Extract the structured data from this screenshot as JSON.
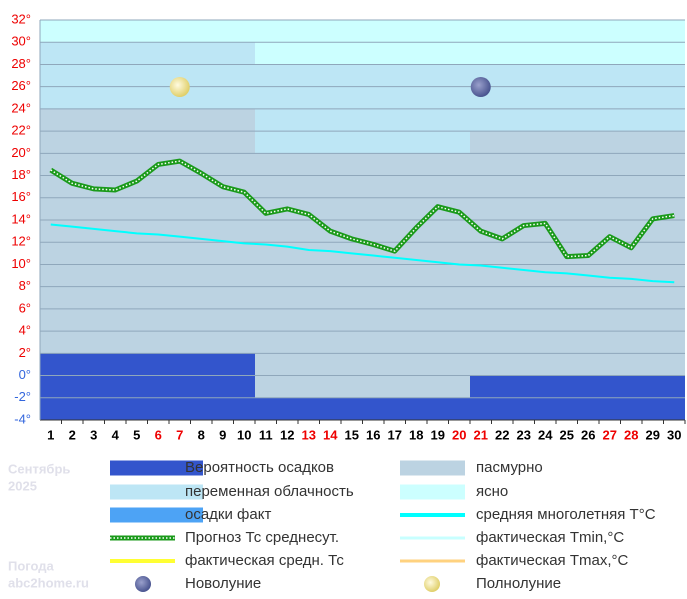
{
  "chart_data": {
    "type": "line",
    "x": [
      1,
      2,
      3,
      4,
      5,
      6,
      7,
      8,
      9,
      10,
      11,
      12,
      13,
      14,
      15,
      16,
      17,
      18,
      19,
      20,
      21,
      22,
      23,
      24,
      25,
      26,
      27,
      28,
      29,
      30
    ],
    "xlim": [
      0.5,
      30.5
    ],
    "weekends": [
      6,
      7,
      13,
      14,
      20,
      21,
      27,
      28
    ],
    "weekday_color": "#000000",
    "weekend_color": "#ee0000",
    "ylim": [
      -4,
      32
    ],
    "yticks": [
      {
        "value": 32,
        "label": "32°"
      },
      {
        "value": 30,
        "label": "30°"
      },
      {
        "value": 28,
        "label": "28°"
      },
      {
        "value": 26,
        "label": "26°"
      },
      {
        "value": 24,
        "label": "24°"
      },
      {
        "value": 22,
        "label": "22°"
      },
      {
        "value": 20,
        "label": "20°"
      },
      {
        "value": 18,
        "label": "18°"
      },
      {
        "value": 16,
        "label": "16°"
      },
      {
        "value": 14,
        "label": "14°"
      },
      {
        "value": 12,
        "label": "12°"
      },
      {
        "value": 10,
        "label": "10°"
      },
      {
        "value": 8,
        "label": "8°"
      },
      {
        "value": 6,
        "label": "6°"
      },
      {
        "value": 4,
        "label": "4°"
      },
      {
        "value": 2,
        "label": "2°"
      },
      {
        "value": 0,
        "label": "0°"
      },
      {
        "value": -2,
        "label": "-2°"
      },
      {
        "value": -4,
        "label": "-4°"
      }
    ],
    "grid": true,
    "bands": [
      {
        "name": "Вероятность осадков",
        "color": "#3355cc"
      },
      {
        "name": "пасмурно",
        "color": "#bcd3e2"
      },
      {
        "name": "переменная облачность",
        "color": "#bde6f5"
      },
      {
        "name": "ясно",
        "color": "#ccffff"
      }
    ],
    "periods": [
      {
        "days": [
          1,
          10
        ],
        "segments": [
          6,
          22,
          6,
          2
        ]
      },
      {
        "days": [
          11,
          20
        ],
        "segments": [
          2,
          22,
          8,
          4
        ]
      },
      {
        "days": [
          21,
          30
        ],
        "segments": [
          4,
          22,
          6,
          4
        ]
      }
    ],
    "series": [
      {
        "name": "Прогноз Тс среднесут.",
        "color": "#1a9a1a",
        "values": [
          18.5,
          17.3,
          16.8,
          16.7,
          17.5,
          19.0,
          19.3,
          18.2,
          17.0,
          16.5,
          14.6,
          15.0,
          14.5,
          13.0,
          12.3,
          11.8,
          11.2,
          13.3,
          15.2,
          14.7,
          13.0,
          12.3,
          13.5,
          13.7,
          10.7,
          10.8,
          12.5,
          11.5,
          14.1,
          14.4
        ]
      },
      {
        "name": "средняя многолетняя T°C",
        "color": "#00ffff",
        "values": [
          13.6,
          13.4,
          13.2,
          13.0,
          12.8,
          12.7,
          12.5,
          12.3,
          12.1,
          11.9,
          11.8,
          11.6,
          11.3,
          11.2,
          11.0,
          10.8,
          10.6,
          10.4,
          10.2,
          10.0,
          9.9,
          9.7,
          9.5,
          9.3,
          9.2,
          9.0,
          8.8,
          8.7,
          8.5,
          8.4
        ]
      }
    ],
    "legend_extra": [
      {
        "name": "осадки факт",
        "color": "#4da3f5"
      },
      {
        "name": "фактическая средн. Тс",
        "color": "#ffff33"
      },
      {
        "name": "фактическая Tmin,°C",
        "color": "#c8ffff"
      },
      {
        "name": "фактическая Tmax,°C",
        "color": "#ffd27f"
      }
    ],
    "moons": {
      "new_moon_label": "Новолуние",
      "new_moon_day": 21,
      "full_moon_label": "Полнолуние",
      "full_moon_day": 7
    },
    "month": "Сентябрь",
    "year": "2025",
    "site_title": "Погода",
    "site": "abc2home.ru"
  }
}
